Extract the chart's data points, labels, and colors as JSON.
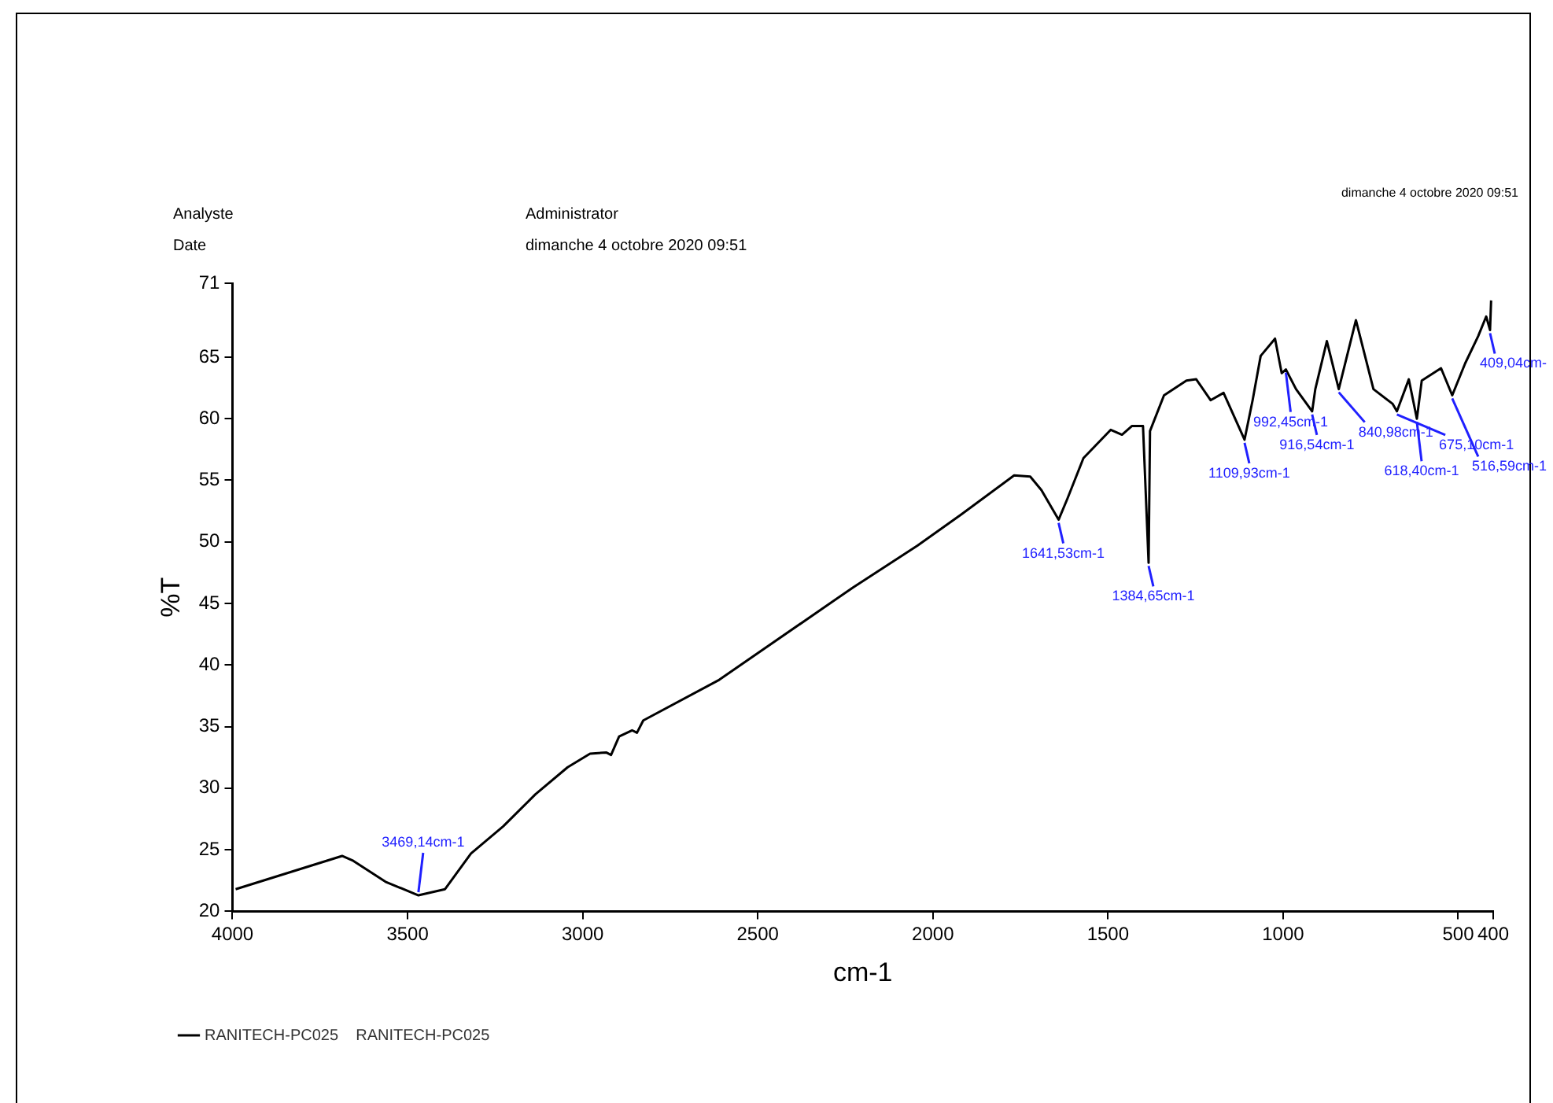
{
  "chart_data": {
    "type": "line",
    "xlabel": "cm-1",
    "ylabel": "%T",
    "xlim": [
      4000,
      400
    ],
    "xticks": [
      4000,
      3500,
      3000,
      2500,
      2000,
      1500,
      1000,
      500,
      400
    ],
    "ylim": [
      20,
      71
    ],
    "yticks": [
      20,
      25,
      30,
      35,
      40,
      45,
      50,
      55,
      60,
      65,
      71
    ],
    "grid": false,
    "legend": "bottom left",
    "marker": "none",
    "line_style": "solid",
    "series": [
      {
        "name": "RANITECH-PC025    RANITECH-PC025",
        "color": "#000000",
        "x": [
          3991,
          3687,
          3655,
          3563,
          3469,
          3393,
          3319,
          3227,
          3135,
          3043,
          2979,
          2933,
          2919,
          2896,
          2859,
          2845,
          2827,
          2610,
          2228,
          2044,
          1920,
          1768,
          1722,
          1690,
          1641,
          1616,
          1570,
          1492,
          1460,
          1432,
          1400,
          1384,
          1380,
          1340,
          1276,
          1248,
          1207,
          1170,
          1110,
          1087,
          1064,
          1023,
          1004,
          992,
          963,
          917,
          908,
          875,
          841,
          792,
          742,
          687,
          675,
          641,
          618,
          604,
          549,
          517,
          480,
          443,
          420,
          409,
          406
        ],
        "values": [
          21.8,
          24.5,
          24.1,
          22.4,
          21.3,
          21.8,
          24.7,
          26.9,
          29.5,
          31.7,
          32.8,
          32.9,
          32.7,
          34.2,
          34.7,
          34.5,
          35.5,
          38.8,
          46.3,
          49.7,
          52.2,
          55.4,
          55.3,
          54.2,
          51.8,
          53.5,
          56.8,
          59.1,
          58.7,
          59.4,
          59.4,
          48.3,
          59.0,
          61.9,
          63.1,
          63.2,
          61.5,
          62.1,
          58.3,
          61.5,
          65.1,
          66.5,
          63.7,
          64.0,
          62.4,
          60.6,
          62.4,
          66.3,
          62.4,
          68.0,
          62.4,
          61.2,
          60.6,
          63.2,
          60.0,
          63.1,
          64.1,
          61.9,
          64.5,
          66.7,
          68.3,
          67.2,
          69.6
        ]
      }
    ],
    "annotations": [
      "Analyste",
      "Administrator",
      "Date",
      "dimanche 4 octobre 2020 09:51",
      "dimanche 4 octobre 2020 09:51",
      {
        "text": "3469,14cm-1",
        "x": 3469,
        "y": 21.3
      },
      {
        "text": "1641,53cm-1",
        "x": 1641,
        "y": 51.8
      },
      {
        "text": "1384,65cm-1",
        "x": 1384,
        "y": 48.3
      },
      {
        "text": "1109,93cm-1",
        "x": 1110,
        "y": 58.3
      },
      {
        "text": "992,45cm-1",
        "x": 992,
        "y": 64.0
      },
      {
        "text": "916,54cm-1",
        "x": 917,
        "y": 60.6
      },
      {
        "text": "840,98cm-1",
        "x": 841,
        "y": 62.4
      },
      {
        "text": "675,10cm-1",
        "x": 675,
        "y": 60.6
      },
      {
        "text": "618,40cm-1",
        "x": 618,
        "y": 60.0
      },
      {
        "text": "516,59cm-1",
        "x": 517,
        "y": 61.9
      },
      {
        "text": "409,04cm-",
        "x": 409,
        "y": 67.2
      }
    ]
  }
}
